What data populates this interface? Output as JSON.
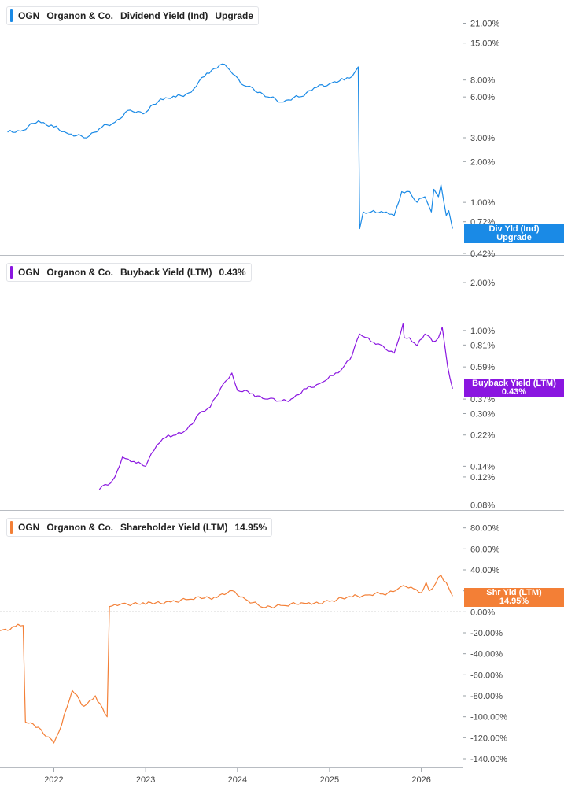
{
  "colors": {
    "dividend": "#1a8ae6",
    "buyback": "#8a16e0",
    "shareholder": "#f37f36",
    "grid": "#cfd3d8",
    "axis_text": "#444444"
  },
  "panels": [
    {
      "legend": {
        "ticker": "OGN",
        "company": "Organon & Co.",
        "metric": "Dividend Yield (Ind)",
        "value": "Upgrade"
      },
      "flag": {
        "line1": "Div Yld (Ind)",
        "line2": "Upgrade"
      }
    },
    {
      "legend": {
        "ticker": "OGN",
        "company": "Organon & Co.",
        "metric": "Buyback Yield (LTM)",
        "value": "0.43%"
      },
      "flag": {
        "line1": "Buyback Yield (LTM)",
        "line2": "0.43%"
      }
    },
    {
      "legend": {
        "ticker": "OGN",
        "company": "Organon & Co.",
        "metric": "Shareholder Yield (LTM)",
        "value": "14.95%"
      },
      "flag": {
        "line1": "Shr Yld (LTM)",
        "line2": "14.95%"
      }
    }
  ],
  "chart_data": [
    {
      "type": "line",
      "title": "OGN Organon & Co. Dividend Yield (Ind)",
      "scale": "log",
      "y_ticks": [
        "21.00%",
        "15.00%",
        "8.00%",
        "6.00%",
        "3.00%",
        "2.00%",
        "1.00%",
        "0.72%",
        "0.42%"
      ],
      "y_tick_values": [
        21,
        15,
        8,
        6,
        3,
        2,
        1,
        0.72,
        0.42
      ],
      "ylim": [
        0.42,
        28
      ],
      "series": [
        {
          "x": [
            "2021-07-01",
            "2021-09-01",
            "2021-11-01",
            "2022-01-01",
            "2022-03-01",
            "2022-05-01",
            "2022-07-01",
            "2022-09-01",
            "2022-11-01",
            "2023-01-01",
            "2023-03-01",
            "2023-05-01",
            "2023-07-01",
            "2023-09-01",
            "2023-11-01",
            "2023-12-01",
            "2024-01-15",
            "2024-03-01",
            "2024-05-01",
            "2024-07-01",
            "2024-09-01",
            "2024-11-01",
            "2025-01-01",
            "2025-03-01",
            "2025-04-01",
            "2025-04-25",
            "2025-05-01",
            "2025-05-15",
            "2025-06-15",
            "2025-08-15",
            "2025-09-15",
            "2025-10-15",
            "2025-11-15",
            "2025-12-15",
            "2026-01-15",
            "2026-02-10",
            "2026-02-20",
            "2026-03-10",
            "2026-03-20",
            "2026-04-10",
            "2026-04-20",
            "2026-05-05"
          ],
          "values": [
            3.3,
            3.4,
            4.0,
            3.6,
            3.2,
            3.0,
            3.5,
            3.9,
            4.8,
            4.6,
            5.8,
            6.0,
            6.5,
            9.0,
            10.5,
            9.5,
            7.5,
            7.0,
            6.0,
            5.5,
            6.0,
            7.0,
            7.5,
            8.0,
            8.5,
            10.0,
            0.64,
            0.85,
            0.85,
            0.85,
            0.8,
            1.2,
            1.2,
            1.0,
            1.1,
            0.85,
            1.25,
            1.1,
            1.35,
            0.8,
            0.87,
            0.64
          ]
        }
      ]
    },
    {
      "type": "line",
      "title": "OGN Organon & Co. Buyback Yield (LTM)",
      "scale": "log",
      "y_ticks": [
        "2.00%",
        "1.00%",
        "0.81%",
        "0.59%",
        "0.37%",
        "0.30%",
        "0.22%",
        "0.14%",
        "0.12%",
        "0.08%"
      ],
      "y_tick_values": [
        2.0,
        1.0,
        0.81,
        0.59,
        0.37,
        0.3,
        0.22,
        0.14,
        0.12,
        0.08
      ],
      "ylim": [
        0.076,
        2.6
      ],
      "series": [
        {
          "x": [
            "2022-07-01",
            "2022-08-15",
            "2022-09-01",
            "2022-10-01",
            "2022-11-15",
            "2023-01-01",
            "2023-02-15",
            "2023-04-01",
            "2023-05-01",
            "2023-06-15",
            "2023-08-01",
            "2023-09-15",
            "2023-11-15",
            "2023-12-10",
            "2024-01-01",
            "2024-03-01",
            "2024-05-01",
            "2024-06-15",
            "2024-08-01",
            "2024-10-01",
            "2024-12-01",
            "2025-01-15",
            "2025-02-15",
            "2025-03-01",
            "2025-04-01",
            "2025-05-01",
            "2025-06-15",
            "2025-08-01",
            "2025-09-15",
            "2025-10-20",
            "2025-10-25",
            "2025-11-15",
            "2025-12-15",
            "2026-01-15",
            "2026-02-15",
            "2026-03-10",
            "2026-03-25",
            "2026-04-15",
            "2026-04-25",
            "2026-05-05"
          ],
          "values": [
            0.1,
            0.11,
            0.12,
            0.16,
            0.15,
            0.14,
            0.19,
            0.22,
            0.22,
            0.24,
            0.3,
            0.33,
            0.48,
            0.54,
            0.42,
            0.4,
            0.37,
            0.36,
            0.37,
            0.43,
            0.47,
            0.52,
            0.56,
            0.6,
            0.7,
            0.95,
            0.85,
            0.8,
            0.72,
            1.1,
            0.9,
            0.9,
            0.8,
            0.95,
            0.85,
            0.9,
            1.05,
            0.6,
            0.5,
            0.43
          ]
        }
      ]
    },
    {
      "type": "line",
      "title": "OGN Organon & Co. Shareholder Yield (LTM)",
      "scale": "linear",
      "y_ticks": [
        "80.00%",
        "60.00%",
        "40.00%",
        "20.00%",
        "0.00%",
        "-20.00%",
        "-40.00%",
        "-60.00%",
        "-80.00%",
        "-100.00%",
        "-120.00%",
        "-140.00%"
      ],
      "y_tick_values": [
        80,
        60,
        40,
        20,
        0,
        -20,
        -40,
        -60,
        -80,
        -100,
        -120,
        -140
      ],
      "ylim": [
        -146,
        88
      ],
      "reference_line": 0,
      "series": [
        {
          "x": [
            "2021-06-01",
            "2021-08-01",
            "2021-09-01",
            "2021-09-10",
            "2021-11-01",
            "2022-01-01",
            "2022-02-01",
            "2022-03-15",
            "2022-05-01",
            "2022-06-15",
            "2022-08-01",
            "2022-08-10",
            "2022-09-01",
            "2022-10-01",
            "2023-01-01",
            "2023-04-01",
            "2023-07-01",
            "2023-10-01",
            "2023-12-01",
            "2024-02-01",
            "2024-04-01",
            "2024-07-01",
            "2024-10-01",
            "2025-01-01",
            "2025-04-01",
            "2025-06-01",
            "2025-08-01",
            "2025-10-01",
            "2025-11-01",
            "2025-12-01",
            "2026-01-01",
            "2026-01-20",
            "2026-02-01",
            "2026-03-01",
            "2026-03-20",
            "2026-04-10",
            "2026-04-25",
            "2026-05-05"
          ],
          "values": [
            -18,
            -14,
            -13,
            -105,
            -110,
            -125,
            -108,
            -75,
            -90,
            -80,
            -100,
            5,
            7,
            8,
            7,
            10,
            12,
            14,
            20,
            12,
            5,
            6,
            8,
            10,
            14,
            16,
            17,
            22,
            24,
            22,
            18,
            28,
            20,
            28,
            35,
            28,
            20,
            14.95
          ]
        }
      ]
    }
  ],
  "x_axis": {
    "labels": [
      "2022",
      "2023",
      "2024",
      "2025",
      "2026"
    ],
    "tick_dates": [
      "2022-01-01",
      "2023-01-01",
      "2024-01-01",
      "2025-01-01",
      "2026-01-01"
    ]
  }
}
